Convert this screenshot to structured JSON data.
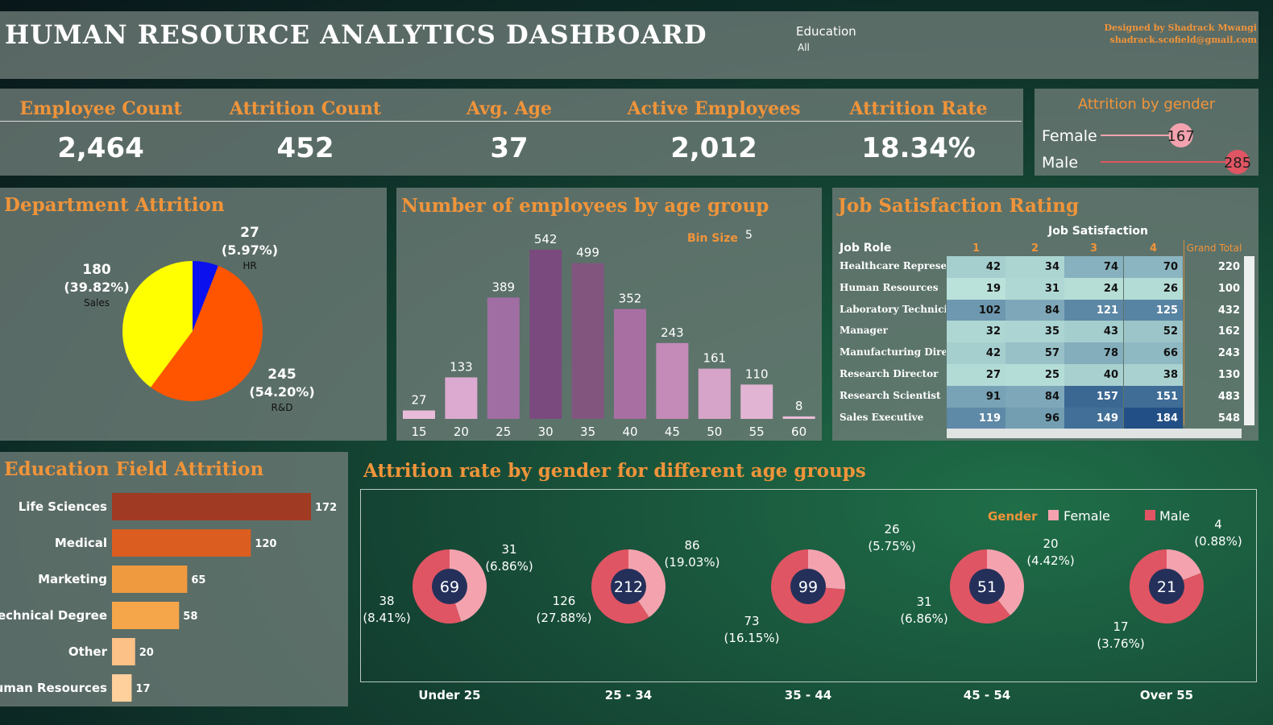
{
  "header": {
    "title": "HUMAN RESOURCE ANALYTICS DASHBOARD",
    "filter_label": "Education",
    "filter_value": "All",
    "credit_line1": "Designed by Shadrack Mwangi",
    "credit_line2": "shadrack.scofield@gmail.com"
  },
  "kpis": [
    {
      "label": "Employee Count",
      "value": "2,464"
    },
    {
      "label": "Attrition Count",
      "value": "452"
    },
    {
      "label": "Avg. Age",
      "value": "37"
    },
    {
      "label": "Active Employees",
      "value": "2,012"
    },
    {
      "label": "Attrition Rate",
      "value": "18.34%"
    }
  ],
  "colors": {
    "accent": "#f0943a",
    "female": "#f4a3ae",
    "male": "#e05563",
    "donut_center": "#24305a"
  },
  "chart_data": [
    {
      "type": "lollipop",
      "title": "Attrition by gender",
      "categories": [
        "Female",
        "Male"
      ],
      "values": [
        167,
        285
      ],
      "colors": [
        "#f4a3ae",
        "#e05563"
      ]
    },
    {
      "type": "pie",
      "title": "Department Attrition",
      "slices": [
        {
          "label": "HR",
          "value": 27,
          "value_text": "27",
          "percent": "(5.97%)",
          "color": "#0a10ee"
        },
        {
          "label": "R&D",
          "value": 245,
          "value_text": "245",
          "percent": "(54.20%)",
          "color": "#ff5500"
        },
        {
          "label": "Sales",
          "value": 180,
          "value_text": "180",
          "percent": "(39.82%)",
          "color": "#ffff00"
        }
      ]
    },
    {
      "type": "bar",
      "title": "Number of employees by age group",
      "categories": [
        "15",
        "20",
        "25",
        "30",
        "35",
        "40",
        "45",
        "50",
        "55",
        "60"
      ],
      "values": [
        27,
        133,
        389,
        542,
        499,
        352,
        243,
        161,
        110,
        8
      ],
      "bin_size_label": "Bin Size",
      "bin_size_value": "5"
    },
    {
      "type": "heatmap",
      "title": "Job Satisfaction Rating",
      "column_group": "Job Satisfaction",
      "row_header": "Job Role",
      "columns": [
        "1",
        "2",
        "3",
        "4"
      ],
      "total_header": "Grand Total",
      "rows": [
        {
          "role": "Healthcare Represent..",
          "values": [
            42,
            34,
            74,
            70
          ],
          "total": 220
        },
        {
          "role": "Human Resources",
          "values": [
            19,
            31,
            24,
            26
          ],
          "total": 100
        },
        {
          "role": "Laboratory Technician",
          "values": [
            102,
            84,
            121,
            125
          ],
          "total": 432
        },
        {
          "role": "Manager",
          "values": [
            32,
            35,
            43,
            52
          ],
          "total": 162
        },
        {
          "role": "Manufacturing Director",
          "values": [
            42,
            57,
            78,
            66
          ],
          "total": 243
        },
        {
          "role": "Research Director",
          "values": [
            27,
            25,
            40,
            38
          ],
          "total": 130
        },
        {
          "role": "Research Scientist",
          "values": [
            91,
            84,
            157,
            151
          ],
          "total": 483
        },
        {
          "role": "Sales Executive",
          "values": [
            119,
            96,
            149,
            184
          ],
          "total": 548
        }
      ]
    },
    {
      "type": "bar",
      "orientation": "horizontal",
      "title": "Education Field Attrition",
      "categories": [
        "Life Sciences",
        "Medical",
        "Marketing",
        "Technical Degree",
        "Other",
        "Human Resources"
      ],
      "values": [
        172,
        120,
        65,
        58,
        20,
        17
      ],
      "colors": [
        "#a13a22",
        "#db5e20",
        "#f09a40",
        "#f5a54a",
        "#fcc187",
        "#fdd09c"
      ]
    },
    {
      "type": "pie",
      "title": "Attrition rate by gender for different age groups",
      "legend_title": "Gender",
      "legend": [
        "Female",
        "Male"
      ],
      "groups": [
        {
          "label": "Under 25",
          "total": "69",
          "female": {
            "value": 31,
            "count": "31",
            "pct": "(6.86%)"
          },
          "male": {
            "value": 38,
            "count": "38",
            "pct": "(8.41%)"
          }
        },
        {
          "label": "25 - 34",
          "total": "212",
          "female": {
            "value": 86,
            "count": "86",
            "pct": "(19.03%)"
          },
          "male": {
            "value": 126,
            "count": "126",
            "pct": "(27.88%)"
          }
        },
        {
          "label": "35 - 44",
          "total": "99",
          "female": {
            "value": 26,
            "count": "26",
            "pct": "(5.75%)"
          },
          "male": {
            "value": 73,
            "count": "73",
            "pct": "(16.15%)"
          }
        },
        {
          "label": "45 - 54",
          "total": "51",
          "female": {
            "value": 20,
            "count": "20",
            "pct": "(4.42%)"
          },
          "male": {
            "value": 31,
            "count": "31",
            "pct": "(6.86%)"
          }
        },
        {
          "label": "Over 55",
          "total": "21",
          "female": {
            "value": 4,
            "count": "4",
            "pct": "(0.88%)"
          },
          "male": {
            "value": 17,
            "count": "17",
            "pct": "(3.76%)"
          }
        }
      ]
    }
  ]
}
